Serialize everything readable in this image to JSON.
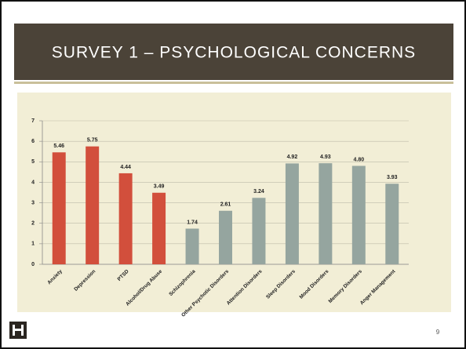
{
  "slide_title": "SURVEY 1 – PSYCHOLOGICAL CONCERNS",
  "slide_number": "9",
  "chart_data": {
    "type": "bar",
    "categories": [
      "Anxiety",
      "Depression",
      "PTSD",
      "Alcohol/Drug Abuse",
      "Schizophrenia",
      "Other Psychotic Disorders",
      "Attention Disorders",
      "Sleep Disorders",
      "Mood Disorders",
      "Memory Disorders",
      "Anger Management"
    ],
    "values": [
      5.46,
      5.75,
      4.44,
      3.49,
      1.74,
      2.61,
      3.24,
      4.92,
      4.93,
      4.8,
      3.93
    ],
    "value_labels": [
      "5.46",
      "5.75",
      "4.44",
      "3.49",
      "1.74",
      "2.61",
      "3.24",
      "4.92",
      "4.93",
      "4.80",
      "3.93"
    ],
    "colors": [
      "#d24f3c",
      "#d24f3c",
      "#d24f3c",
      "#d24f3c",
      "#95a59f",
      "#95a59f",
      "#95a59f",
      "#95a59f",
      "#95a59f",
      "#95a59f",
      "#95a59f"
    ],
    "ylim": [
      0,
      7
    ],
    "yticks": [
      0,
      1,
      2,
      3,
      4,
      5,
      6,
      7
    ],
    "grid": true
  }
}
